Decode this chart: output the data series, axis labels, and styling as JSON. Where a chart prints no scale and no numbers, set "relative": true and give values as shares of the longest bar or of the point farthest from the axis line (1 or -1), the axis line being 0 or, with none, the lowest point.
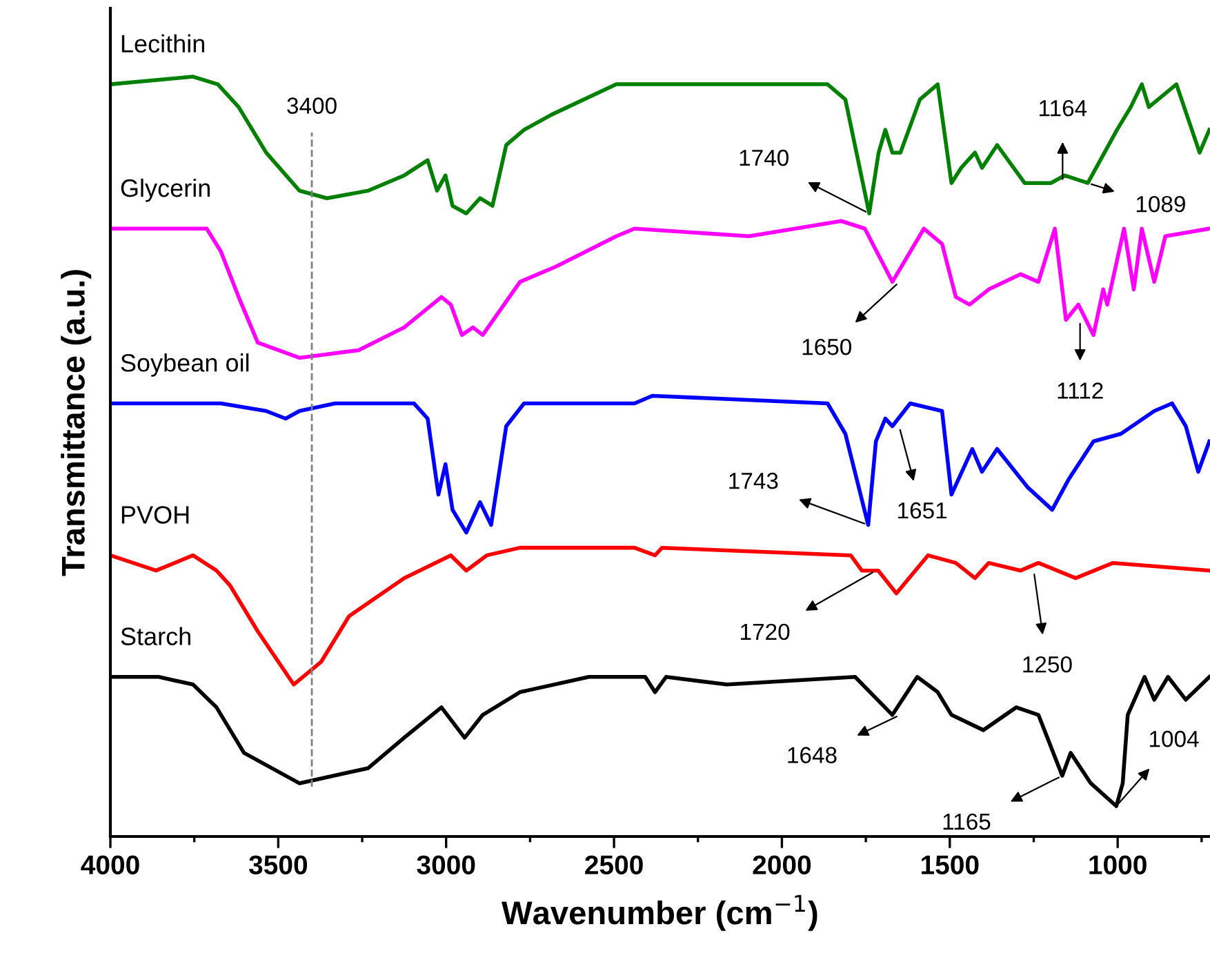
{
  "chart_data": {
    "type": "line",
    "relative": true,
    "xlabel": "Wavenumber (cm$^{−1}$)",
    "ylabel": "Transmittance (a.u.)",
    "xlim": [
      4000,
      725
    ],
    "xticks": [
      4000,
      {
        "value": 3750,
        "label": null
      },
      3500,
      {
        "value": 3250,
        "label": null
      },
      3000,
      {
        "value": 2750,
        "label": null
      },
      2500,
      {
        "value": 2250,
        "label": null
      },
      2000,
      {
        "value": 1750,
        "label": null
      },
      1500,
      {
        "value": 1250,
        "label": null
      },
      1000,
      {
        "value": 750,
        "label": null
      }
    ],
    "tick_labels": "x",
    "grid": false,
    "legend": false,
    "marker": "none",
    "line_style": "solid",
    "series": [
      {
        "name": "Lecithin",
        "color": "#008000",
        "x": [
          4000,
          3754,
          3680,
          3618,
          3536,
          3437,
          3355,
          3232,
          3125,
          3055,
          3027,
          3002,
          2981,
          2940,
          2899,
          2862,
          2821,
          2768,
          2686,
          2493,
          2439,
          1864,
          1811,
          1740,
          1712,
          1692,
          1671,
          1647,
          1589,
          1536,
          1495,
          1466,
          1425,
          1404,
          1359,
          1277,
          1199,
          1158,
          1089,
          1002,
          961,
          928,
          907,
          825,
          756,
          727
        ],
        "values": [
          0.99,
          1.0,
          0.99,
          0.96,
          0.9,
          0.85,
          0.84,
          0.85,
          0.87,
          0.89,
          0.85,
          0.87,
          0.83,
          0.82,
          0.84,
          0.83,
          0.91,
          0.93,
          0.95,
          0.99,
          0.99,
          0.99,
          0.97,
          0.82,
          0.9,
          0.93,
          0.9,
          0.9,
          0.97,
          0.99,
          0.86,
          0.88,
          0.9,
          0.88,
          0.91,
          0.86,
          0.86,
          0.87,
          0.86,
          0.93,
          0.96,
          0.99,
          0.96,
          0.99,
          0.9,
          0.93
        ]
      },
      {
        "name": "Glycerin",
        "color": "#ff00ff",
        "x": [
          4000,
          3754,
          3713,
          3671,
          3618,
          3561,
          3437,
          3261,
          3125,
          3014,
          2986,
          2953,
          2920,
          2891,
          2780,
          2673,
          2493,
          2439,
          2098,
          1823,
          1753,
          1671,
          1577,
          1523,
          1482,
          1441,
          1384,
          1289,
          1236,
          1187,
          1154,
          1117,
          1072,
          1043,
          1031,
          981,
          952,
          928,
          891,
          858,
          727
        ],
        "values": [
          0.8,
          0.8,
          0.8,
          0.77,
          0.71,
          0.65,
          0.63,
          0.64,
          0.67,
          0.71,
          0.7,
          0.66,
          0.67,
          0.66,
          0.73,
          0.75,
          0.79,
          0.8,
          0.79,
          0.81,
          0.8,
          0.73,
          0.8,
          0.78,
          0.71,
          0.7,
          0.72,
          0.74,
          0.73,
          0.8,
          0.68,
          0.7,
          0.66,
          0.72,
          0.7,
          0.8,
          0.72,
          0.8,
          0.73,
          0.79,
          0.8
        ]
      },
      {
        "name": "Soybean oil",
        "color": "#0000ff",
        "x": [
          4000,
          3671,
          3536,
          3478,
          3437,
          3331,
          3096,
          3055,
          3023,
          3002,
          2981,
          2940,
          2899,
          2866,
          2821,
          2768,
          2575,
          2439,
          2386,
          1864,
          1811,
          1743,
          1720,
          1692,
          1671,
          1618,
          1523,
          1495,
          1433,
          1404,
          1359,
          1269,
          1195,
          1146,
          1072,
          990,
          891,
          838,
          797,
          760,
          727
        ],
        "values": [
          0.57,
          0.57,
          0.56,
          0.55,
          0.56,
          0.57,
          0.57,
          0.55,
          0.45,
          0.49,
          0.43,
          0.4,
          0.44,
          0.41,
          0.54,
          0.57,
          0.57,
          0.57,
          0.58,
          0.57,
          0.53,
          0.41,
          0.52,
          0.55,
          0.54,
          0.57,
          0.56,
          0.45,
          0.51,
          0.48,
          0.51,
          0.46,
          0.43,
          0.47,
          0.52,
          0.53,
          0.56,
          0.57,
          0.54,
          0.48,
          0.52
        ]
      },
      {
        "name": "PVOH",
        "color": "#ff0000",
        "x": [
          4000,
          3864,
          3754,
          3684,
          3643,
          3561,
          3454,
          3372,
          3289,
          3125,
          2986,
          2940,
          2879,
          2780,
          2439,
          2378,
          2357,
          1795,
          1762,
          1713,
          1659,
          1565,
          1482,
          1425,
          1384,
          1289,
          1236,
          1125,
          1014,
          727
        ],
        "values": [
          0.37,
          0.35,
          0.37,
          0.35,
          0.33,
          0.27,
          0.2,
          0.23,
          0.29,
          0.34,
          0.37,
          0.35,
          0.37,
          0.38,
          0.38,
          0.37,
          0.38,
          0.37,
          0.35,
          0.35,
          0.32,
          0.37,
          0.36,
          0.34,
          0.36,
          0.35,
          0.36,
          0.34,
          0.36,
          0.35
        ]
      },
      {
        "name": "Starch",
        "color": "#000000",
        "x": [
          4000,
          3856,
          3754,
          3684,
          3602,
          3437,
          3232,
          3125,
          3014,
          2945,
          2891,
          2780,
          2575,
          2407,
          2378,
          2345,
          2164,
          1782,
          1671,
          1597,
          1536,
          1495,
          1400,
          1302,
          1236,
          1165,
          1140,
          1080,
          1004,
          985,
          970,
          920,
          891,
          850,
          797,
          727
        ],
        "values": [
          0.21,
          0.21,
          0.2,
          0.17,
          0.11,
          0.07,
          0.09,
          0.13,
          0.17,
          0.13,
          0.16,
          0.19,
          0.21,
          0.21,
          0.19,
          0.21,
          0.2,
          0.21,
          0.16,
          0.21,
          0.19,
          0.16,
          0.14,
          0.17,
          0.16,
          0.08,
          0.11,
          0.07,
          0.04,
          0.07,
          0.16,
          0.21,
          0.18,
          0.21,
          0.18,
          0.21
        ]
      }
    ],
    "ref_lines": [
      {
        "axis": "x",
        "value": 3400,
        "label": "3400",
        "color": "#808080",
        "line_style": "dashed"
      }
    ],
    "annotations": [
      {
        "text": "1740",
        "x": 1740,
        "y": 0.82
      },
      {
        "text": "1164",
        "x": 1164,
        "y": 0.86
      },
      {
        "text": "1089",
        "x": 1089,
        "y": 0.86
      },
      {
        "text": "1650",
        "x": 1650,
        "y": 0.73
      },
      {
        "text": "1112",
        "x": 1112,
        "y": 0.68
      },
      {
        "text": "1651",
        "x": 1651,
        "y": 0.54
      },
      {
        "text": "1743",
        "x": 1743,
        "y": 0.41
      },
      {
        "text": "1720",
        "x": 1720,
        "y": 0.35
      },
      {
        "text": "1250",
        "x": 1250,
        "y": 0.35
      },
      {
        "text": "1648",
        "x": 1648,
        "y": 0.16
      },
      {
        "text": "1165",
        "x": 1165,
        "y": 0.08
      },
      {
        "text": "1004",
        "x": 1004,
        "y": 0.04
      }
    ]
  }
}
